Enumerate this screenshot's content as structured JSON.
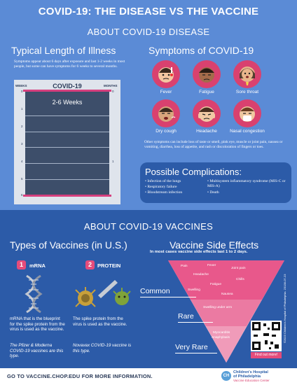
{
  "header": {
    "title": "COVID-19: THE DISEASE VS THE VACCINE",
    "disease_section": "ABOUT COVID-19 DISEASE"
  },
  "illness": {
    "heading": "Typical Length of Illness",
    "text": "Symptoms appear about 6 days after exposure and last 1-2 weeks in most people, but some can have symptoms for 6 weeks to several months.",
    "chart_label": "COVID-19",
    "left_axis": "WEEKS",
    "right_axis": "MONTHS",
    "weeks_label": "2-6 Weeks",
    "left_ticks": [
      "0",
      "1",
      "2",
      "3",
      "4",
      "5",
      "6"
    ],
    "right_ticks": [
      "0",
      "1"
    ]
  },
  "symptoms": {
    "heading": "Symptoms of COVID-19",
    "items": [
      {
        "label": "Fever"
      },
      {
        "label": "Fatigue"
      },
      {
        "label": "Sore throat"
      },
      {
        "label": "Dry cough"
      },
      {
        "label": "Headache"
      },
      {
        "label": "Nasal congestion"
      }
    ],
    "other": "Other symptoms can include loss of taste or smell, pink eye, muscle or joint pain, nausea or vomiting, diarrhea, loss of appetite, and rash or discoloration of fingers or toes."
  },
  "complications": {
    "heading": "Possible Complications:",
    "left": [
      "Infection of the lungs",
      "Respiratory failure",
      "Bloodstream infection"
    ],
    "right": [
      "Multisystem inflammatory syndrome (MIS-C or MIS-A)",
      "Death"
    ]
  },
  "vaccines": {
    "section": "ABOUT COVID-19 VACCINES",
    "types_heading": "Types of Vaccines (in U.S.)",
    "mrna": {
      "num": "1",
      "label": "mRNA",
      "text": "mRNA that is the blueprint for the spike protein from the virus is used as the vaccine.",
      "note": "The Pfizer & Moderna COVID-19 vaccines are this type."
    },
    "protein": {
      "num": "2",
      "label": "PROTEIN",
      "text": "The spike protein from the virus is used as the vaccine.",
      "note": "Novavax COVID-19 vaccine is this type."
    }
  },
  "side_effects": {
    "heading": "Vaccine Side Effects",
    "sub": "In most cases vaccine side effects last 1 to 2 days.",
    "common_label": "Common",
    "rare_label": "Rare",
    "very_rare_label": "Very Rare",
    "common_items": [
      "Pain",
      "Fever",
      "Joint pain",
      "Headache",
      "Chills",
      "Fatigue",
      "Swelling",
      "Nausea"
    ],
    "rare_items": [
      "Swelling under arm"
    ],
    "very_rare_items": [
      "Myocarditis",
      "Anaphylaxis"
    ],
    "qr_caption": "Find out more!"
  },
  "footer": {
    "text": "GO TO VACCINE.CHOP.EDU FOR MORE INFORMATION.",
    "org_line1": "Children's Hospital",
    "org_line2": "of Philadelphia",
    "org_line3": "Vaccine Education Center",
    "logo_mark": "CH"
  },
  "side_credit": "©2023 Children's Hospital of Philadelphia. 23138-07-23",
  "colors": {
    "top_bg": "#5b8bd6",
    "bottom_bg": "#2c5ba8",
    "accent": "#d9416f",
    "navy": "#3d4e6a"
  }
}
